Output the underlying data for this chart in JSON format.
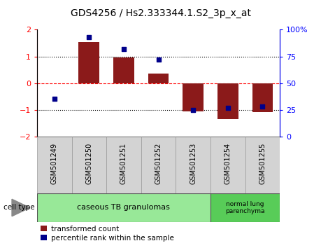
{
  "title": "GDS4256 / Hs2.333344.1.S2_3p_x_at",
  "samples": [
    "GSM501249",
    "GSM501250",
    "GSM501251",
    "GSM501252",
    "GSM501253",
    "GSM501254",
    "GSM501255"
  ],
  "red_values": [
    0.0,
    1.55,
    0.95,
    0.35,
    -1.05,
    -1.35,
    -1.1
  ],
  "blue_values": [
    35,
    93,
    82,
    72,
    25,
    27,
    28
  ],
  "ylim_left": [
    -2,
    2
  ],
  "ylim_right": [
    0,
    100
  ],
  "bar_color": "#8B1A1A",
  "dot_color": "#00008B",
  "group1_label": "caseous TB granulomas",
  "group2_label": "normal lung\nparenchyma",
  "group1_color": "#98E898",
  "group2_color": "#58CC58",
  "cell_type_label": "cell type",
  "legend_red": "transformed count",
  "legend_blue": "percentile rank within the sample",
  "title_fontsize": 10,
  "tick_fontsize": 8,
  "label_fontsize": 7
}
